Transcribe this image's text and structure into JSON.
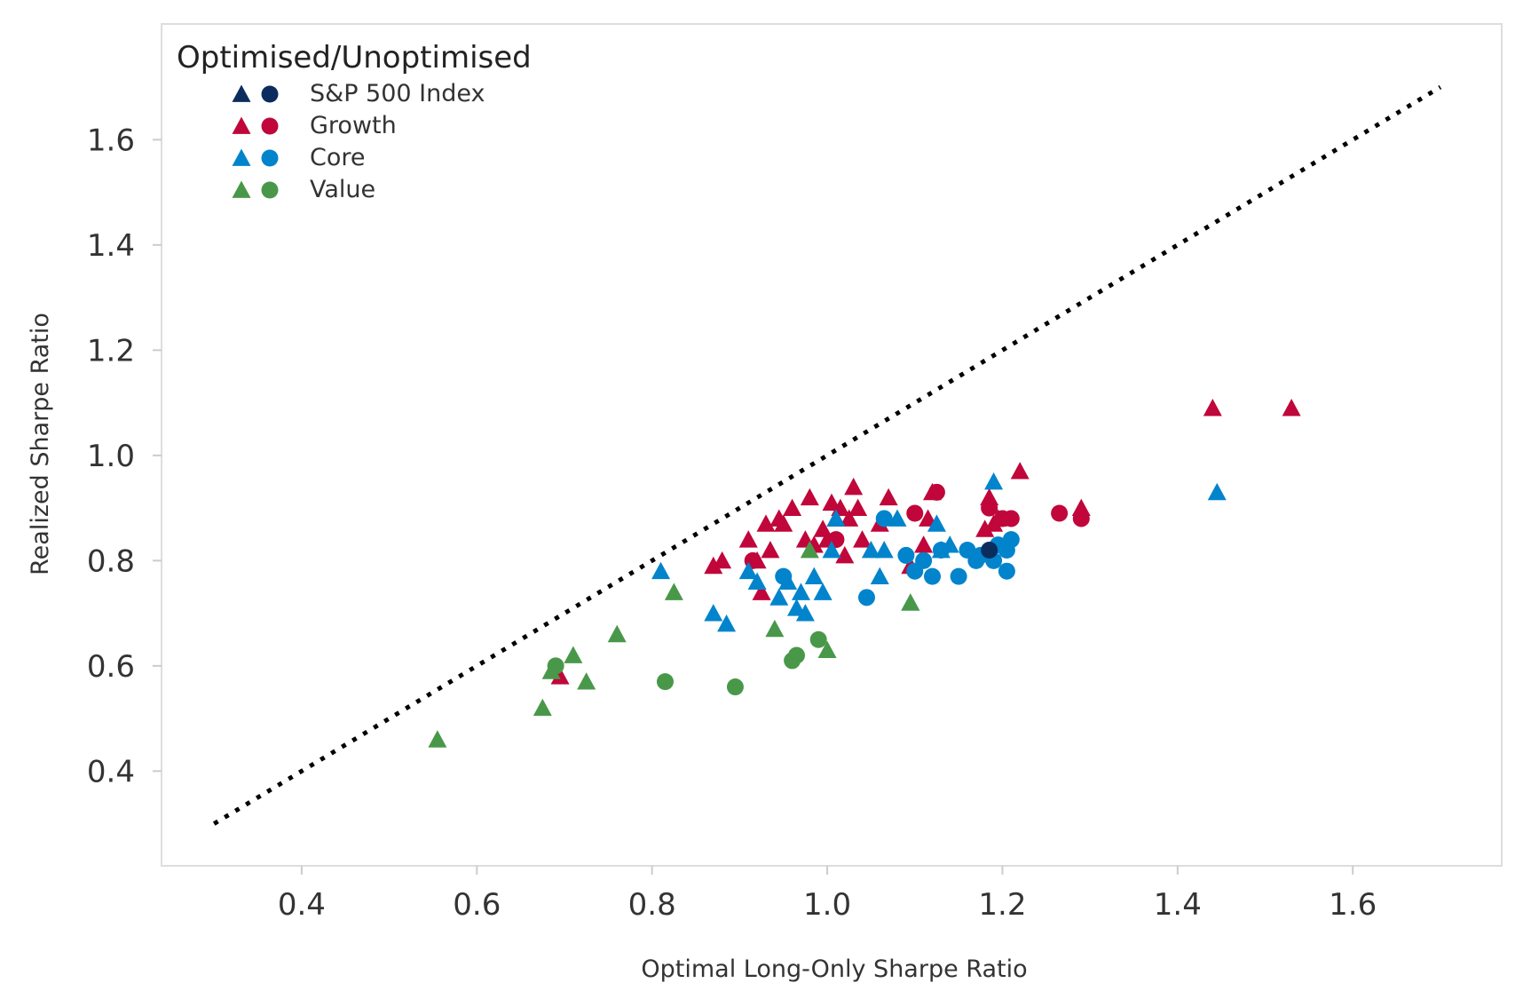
{
  "colors": {
    "sp500": "#0b2d5e",
    "growth": "#c0063a",
    "core": "#0284cc",
    "value": "#49984a",
    "frame": "#dddddd",
    "reference_line": "#000000"
  },
  "chart_data": {
    "type": "scatter",
    "xlabel": "Optimal Long-Only Sharpe Ratio",
    "ylabel": "Realized Sharpe Ratio",
    "xlim": [
      0.24,
      1.77
    ],
    "ylim": [
      0.22,
      1.82
    ],
    "xticks": [
      0.4,
      0.6,
      0.8,
      1.0,
      1.2,
      1.4,
      1.6
    ],
    "xtick_labels": [
      "0.4",
      "0.6",
      "0.8",
      "1.0",
      "1.2",
      "1.4",
      "1.6"
    ],
    "yticks": [
      0.4,
      0.6,
      0.8,
      1.0,
      1.2,
      1.4,
      1.6
    ],
    "ytick_labels": [
      "0.4",
      "0.6",
      "0.8",
      "1.0",
      "1.2",
      "1.4",
      "1.6"
    ],
    "grid": false,
    "legend": {
      "title": "Optimised/Unoptimised",
      "position": "top-left",
      "entries": [
        {
          "label": "S&P 500 Index",
          "color": "sp500"
        },
        {
          "label": "Growth",
          "color": "growth"
        },
        {
          "label": "Core",
          "color": "core"
        },
        {
          "label": "Value",
          "color": "value"
        }
      ]
    },
    "reference_line": {
      "style": "dotted",
      "points": [
        [
          0.3,
          0.3
        ],
        [
          1.7,
          1.7
        ]
      ]
    },
    "series": [
      {
        "name": "Growth",
        "color": "growth",
        "marker": "triangle",
        "points": [
          [
            0.87,
            0.79
          ],
          [
            0.88,
            0.8
          ],
          [
            0.91,
            0.84
          ],
          [
            0.92,
            0.8
          ],
          [
            0.925,
            0.74
          ],
          [
            0.93,
            0.87
          ],
          [
            0.935,
            0.82
          ],
          [
            0.945,
            0.88
          ],
          [
            0.95,
            0.87
          ],
          [
            0.96,
            0.9
          ],
          [
            0.975,
            0.84
          ],
          [
            0.98,
            0.92
          ],
          [
            0.985,
            0.83
          ],
          [
            0.995,
            0.86
          ],
          [
            1.0,
            0.84
          ],
          [
            1.005,
            0.91
          ],
          [
            1.01,
            0.88
          ],
          [
            1.015,
            0.9
          ],
          [
            1.02,
            0.81
          ],
          [
            1.025,
            0.88
          ],
          [
            1.03,
            0.94
          ],
          [
            1.035,
            0.9
          ],
          [
            1.04,
            0.84
          ],
          [
            1.06,
            0.87
          ],
          [
            1.07,
            0.92
          ],
          [
            1.095,
            0.79
          ],
          [
            1.11,
            0.83
          ],
          [
            1.115,
            0.88
          ],
          [
            1.12,
            0.93
          ],
          [
            1.18,
            0.86
          ],
          [
            1.185,
            0.92
          ],
          [
            1.19,
            0.87
          ],
          [
            1.195,
            0.88
          ],
          [
            1.22,
            0.97
          ],
          [
            1.29,
            0.9
          ],
          [
            1.44,
            1.09
          ],
          [
            1.53,
            1.09
          ],
          [
            0.695,
            0.58
          ]
        ]
      },
      {
        "name": "Growth",
        "color": "growth",
        "marker": "circle",
        "points": [
          [
            0.915,
            0.8
          ],
          [
            1.01,
            0.84
          ],
          [
            1.1,
            0.89
          ],
          [
            1.125,
            0.93
          ],
          [
            1.185,
            0.9
          ],
          [
            1.2,
            0.88
          ],
          [
            1.21,
            0.88
          ],
          [
            1.265,
            0.89
          ],
          [
            1.29,
            0.88
          ]
        ]
      },
      {
        "name": "Core",
        "color": "core",
        "marker": "triangle",
        "points": [
          [
            0.81,
            0.78
          ],
          [
            0.87,
            0.7
          ],
          [
            0.885,
            0.68
          ],
          [
            0.91,
            0.78
          ],
          [
            0.92,
            0.76
          ],
          [
            0.945,
            0.73
          ],
          [
            0.955,
            0.76
          ],
          [
            0.965,
            0.71
          ],
          [
            0.97,
            0.74
          ],
          [
            0.975,
            0.7
          ],
          [
            0.985,
            0.77
          ],
          [
            0.995,
            0.74
          ],
          [
            1.005,
            0.82
          ],
          [
            1.01,
            0.88
          ],
          [
            1.05,
            0.82
          ],
          [
            1.06,
            0.77
          ],
          [
            1.065,
            0.82
          ],
          [
            1.08,
            0.88
          ],
          [
            1.095,
            0.72
          ],
          [
            1.125,
            0.87
          ],
          [
            1.13,
            0.82
          ],
          [
            1.14,
            0.83
          ],
          [
            1.19,
            0.95
          ],
          [
            1.445,
            0.93
          ]
        ]
      },
      {
        "name": "Core",
        "color": "core",
        "marker": "circle",
        "points": [
          [
            0.95,
            0.77
          ],
          [
            1.045,
            0.73
          ],
          [
            1.065,
            0.88
          ],
          [
            1.09,
            0.81
          ],
          [
            1.1,
            0.78
          ],
          [
            1.11,
            0.8
          ],
          [
            1.12,
            0.77
          ],
          [
            1.13,
            0.82
          ],
          [
            1.15,
            0.77
          ],
          [
            1.16,
            0.82
          ],
          [
            1.17,
            0.8
          ],
          [
            1.175,
            0.81
          ],
          [
            1.19,
            0.8
          ],
          [
            1.195,
            0.83
          ],
          [
            1.205,
            0.78
          ],
          [
            1.205,
            0.82
          ],
          [
            1.21,
            0.84
          ]
        ]
      },
      {
        "name": "Value",
        "color": "value",
        "marker": "triangle",
        "points": [
          [
            0.555,
            0.46
          ],
          [
            0.675,
            0.52
          ],
          [
            0.685,
            0.59
          ],
          [
            0.71,
            0.62
          ],
          [
            0.725,
            0.57
          ],
          [
            0.76,
            0.66
          ],
          [
            0.825,
            0.74
          ],
          [
            0.94,
            0.67
          ],
          [
            0.98,
            0.82
          ],
          [
            1.0,
            0.63
          ],
          [
            1.095,
            0.72
          ]
        ]
      },
      {
        "name": "Value",
        "color": "value",
        "marker": "circle",
        "points": [
          [
            0.69,
            0.6
          ],
          [
            0.815,
            0.57
          ],
          [
            0.895,
            0.56
          ],
          [
            0.96,
            0.61
          ],
          [
            0.965,
            0.62
          ],
          [
            0.99,
            0.65
          ]
        ]
      },
      {
        "name": "S&P 500 Index",
        "color": "sp500",
        "marker": "circle",
        "points": [
          [
            1.185,
            0.82
          ]
        ]
      }
    ]
  }
}
